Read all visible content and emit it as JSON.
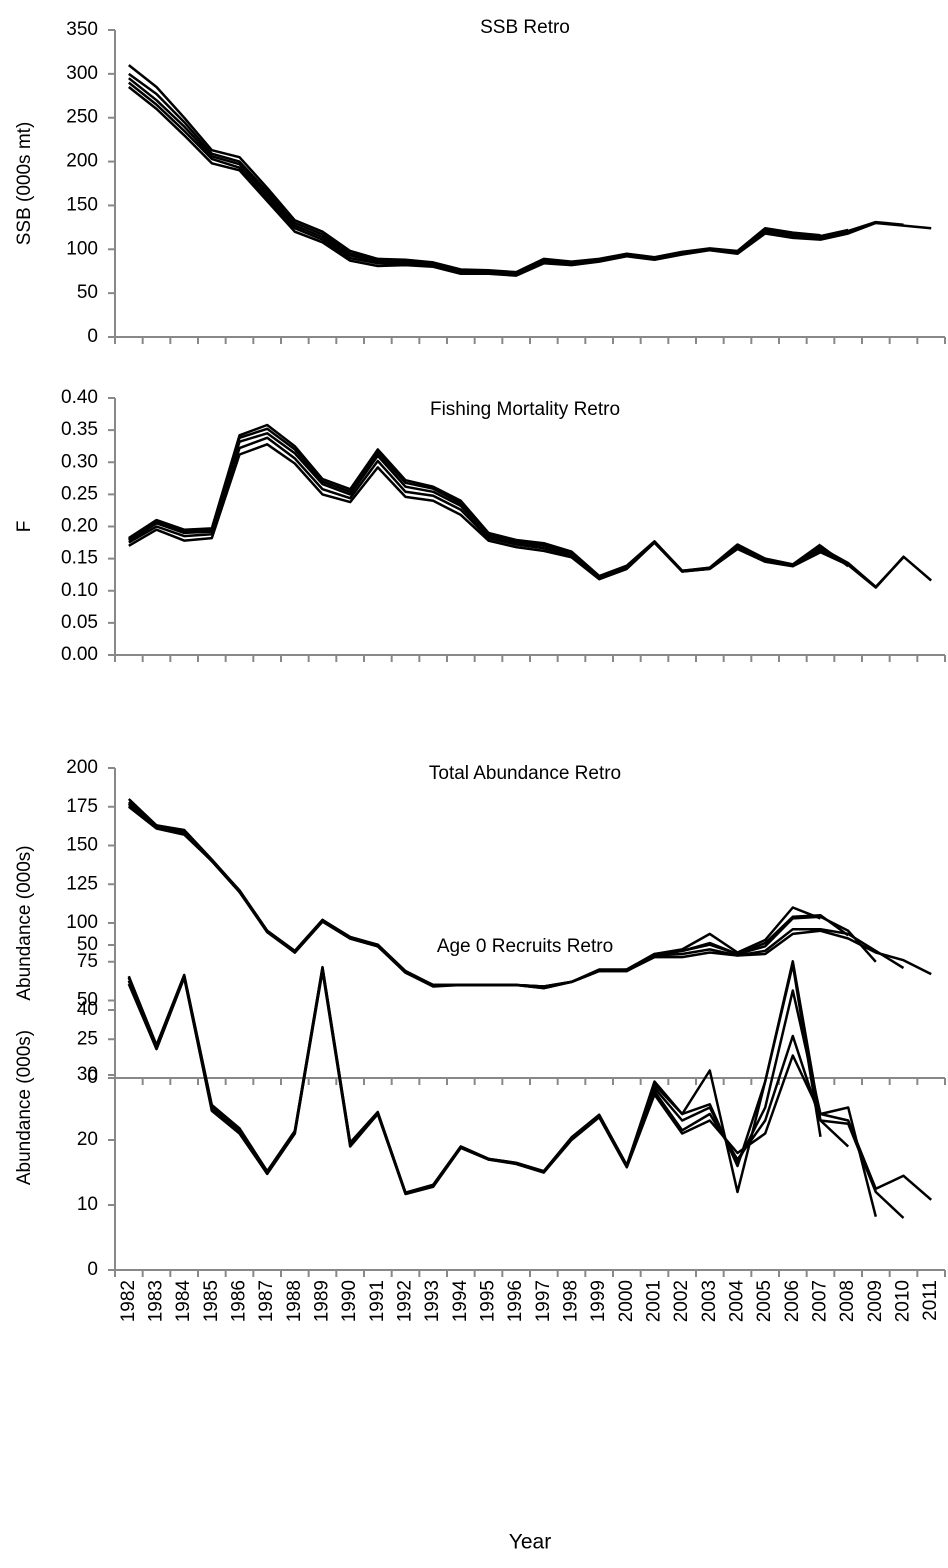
{
  "chart_data": [
    {
      "type": "line",
      "title": "SSB Retro",
      "ylabel": "SSB (000s mt)",
      "ylim": [
        0,
        350
      ],
      "yticks": [
        0,
        50,
        100,
        150,
        200,
        250,
        300,
        350
      ],
      "series": [
        {
          "color": "#000000",
          "values": [
            285,
            260,
            230,
            198,
            190,
            155,
            120,
            108,
            87,
            81,
            82,
            80,
            72,
            72,
            70,
            84,
            82,
            86,
            92,
            88,
            94,
            99,
            95,
            118,
            113,
            111,
            118,
            130,
            127,
            124
          ]
        },
        {
          "color": "#000000",
          "values": [
            290,
            265,
            235,
            203,
            193,
            158,
            124,
            111,
            90,
            84,
            84,
            82,
            74,
            73,
            71,
            86,
            83,
            87,
            93,
            89,
            95,
            100,
            96,
            120,
            115,
            113,
            120,
            131,
            128,
            null
          ]
        },
        {
          "color": "#000000",
          "values": [
            295,
            270,
            240,
            206,
            197,
            162,
            127,
            114,
            93,
            86,
            85,
            83,
            75,
            74,
            72,
            87,
            84,
            88,
            94,
            90,
            96,
            100,
            97,
            122,
            117,
            114,
            121,
            131,
            null,
            null
          ]
        },
        {
          "color": "#000000",
          "values": [
            300,
            277,
            245,
            209,
            200,
            166,
            130,
            117,
            95,
            88,
            86,
            84,
            76,
            75,
            73,
            88,
            85,
            88,
            94,
            90,
            96,
            100,
            97,
            123,
            118,
            115,
            122,
            null,
            null,
            null
          ]
        },
        {
          "color": "#000000",
          "values": [
            310,
            285,
            250,
            213,
            205,
            170,
            133,
            120,
            98,
            89,
            88,
            85,
            77,
            76,
            74,
            89,
            86,
            89,
            95,
            91,
            97,
            101,
            98,
            124,
            119,
            116,
            null,
            null,
            null,
            null
          ]
        }
      ]
    },
    {
      "type": "line",
      "title": "Fishing Mortality Retro",
      "ylabel": "F",
      "ylim": [
        0,
        0.4
      ],
      "yticks": [
        {
          "value": 0,
          "label": "0.00"
        },
        {
          "value": 0.05,
          "label": "0.05"
        },
        {
          "value": 0.1,
          "label": "0.10"
        },
        {
          "value": 0.15,
          "label": "0.15"
        },
        {
          "value": 0.2,
          "label": "0.20"
        },
        {
          "value": 0.25,
          "label": "0.25"
        },
        {
          "value": 0.3,
          "label": "0.30"
        },
        {
          "value": 0.35,
          "label": "0.35"
        },
        {
          "value": 0.4,
          "label": "0.40"
        }
      ],
      "series": [
        {
          "color": "#000000",
          "values": [
            0.17,
            0.195,
            0.178,
            0.182,
            0.312,
            0.328,
            0.298,
            0.25,
            0.238,
            0.292,
            0.246,
            0.24,
            0.218,
            0.178,
            0.168,
            0.162,
            0.152,
            0.118,
            0.134,
            0.175,
            0.13,
            0.134,
            0.165,
            0.145,
            0.138,
            0.16,
            0.14,
            0.105,
            0.153,
            0.116
          ]
        },
        {
          "color": "#000000",
          "values": [
            0.175,
            0.2,
            0.185,
            0.188,
            0.322,
            0.338,
            0.306,
            0.258,
            0.244,
            0.302,
            0.254,
            0.248,
            0.226,
            0.182,
            0.172,
            0.166,
            0.155,
            0.12,
            0.136,
            0.175,
            0.13,
            0.134,
            0.166,
            0.147,
            0.139,
            0.163,
            0.142,
            0.106,
            0.152,
            null
          ]
        },
        {
          "color": "#000000",
          "values": [
            0.178,
            0.205,
            0.19,
            0.192,
            0.332,
            0.345,
            0.314,
            0.266,
            0.25,
            0.31,
            0.262,
            0.254,
            0.232,
            0.185,
            0.175,
            0.17,
            0.158,
            0.121,
            0.137,
            0.176,
            0.13,
            0.135,
            0.168,
            0.148,
            0.14,
            0.167,
            0.143,
            0.106,
            null,
            null
          ]
        },
        {
          "color": "#000000",
          "values": [
            0.18,
            0.208,
            0.193,
            0.195,
            0.338,
            0.352,
            0.32,
            0.27,
            0.254,
            0.315,
            0.268,
            0.259,
            0.236,
            0.187,
            0.177,
            0.172,
            0.159,
            0.122,
            0.138,
            0.176,
            0.131,
            0.135,
            0.17,
            0.149,
            0.14,
            0.17,
            0.138,
            null,
            null,
            null
          ]
        },
        {
          "color": "#000000",
          "values": [
            0.182,
            0.21,
            0.195,
            0.197,
            0.342,
            0.358,
            0.325,
            0.274,
            0.258,
            0.32,
            0.272,
            0.262,
            0.24,
            0.19,
            0.179,
            0.174,
            0.161,
            0.123,
            0.139,
            0.177,
            0.131,
            0.136,
            0.172,
            0.15,
            0.141,
            0.172,
            null,
            null,
            null,
            null
          ]
        }
      ]
    },
    {
      "type": "line",
      "title": "Total Abundance Retro",
      "ylabel": "Abundance (000s)",
      "ylim": [
        0,
        200
      ],
      "yticks": [
        0,
        25,
        50,
        75,
        100,
        125,
        150,
        175,
        200
      ],
      "series": [
        {
          "color": "#000000",
          "values": [
            175,
            161,
            157,
            140,
            120,
            94,
            81,
            101,
            90,
            85,
            68,
            59,
            60,
            60,
            60,
            58,
            62,
            69,
            69,
            78,
            78,
            81,
            79,
            80,
            93,
            95,
            90,
            81,
            76,
            67
          ]
        },
        {
          "color": "#000000",
          "values": [
            176,
            162,
            158,
            140,
            120,
            95,
            81,
            101,
            90,
            85,
            68,
            60,
            60,
            60,
            60,
            58,
            62,
            69,
            69,
            79,
            80,
            83,
            79,
            82,
            96,
            96,
            93,
            82,
            71,
            null
          ]
        },
        {
          "color": "#000000",
          "values": [
            177,
            162,
            158,
            140,
            121,
            95,
            81,
            102,
            90,
            85,
            68,
            60,
            60,
            60,
            60,
            59,
            62,
            69,
            69,
            79,
            82,
            86,
            80,
            85,
            103,
            104,
            95,
            75,
            null,
            null
          ]
        },
        {
          "color": "#000000",
          "values": [
            178,
            163,
            159,
            140,
            121,
            95,
            82,
            102,
            90,
            86,
            68,
            60,
            60,
            60,
            60,
            59,
            62,
            69,
            70,
            80,
            82,
            87,
            80,
            87,
            104,
            105,
            92,
            null,
            null,
            null
          ]
        },
        {
          "color": "#000000",
          "values": [
            180,
            163,
            160,
            141,
            121,
            95,
            82,
            102,
            91,
            86,
            69,
            60,
            60,
            60,
            60,
            59,
            62,
            70,
            70,
            80,
            83,
            93,
            81,
            89,
            110,
            103,
            null,
            null,
            null,
            null
          ]
        }
      ]
    },
    {
      "type": "line",
      "title": "Age 0 Recruits Retro",
      "ylabel": "Abundance (000s)",
      "xlabel": "Year",
      "ylim": [
        0,
        50
      ],
      "yticks": [
        0,
        10,
        20,
        30,
        40,
        50
      ],
      "categories": [
        "1982",
        "1983",
        "1984",
        "1985",
        "1986",
        "1987",
        "1988",
        "1989",
        "1990",
        "1991",
        "1992",
        "1993",
        "1994",
        "1995",
        "1996",
        "1997",
        "1998",
        "1999",
        "2000",
        "2001",
        "2002",
        "2003",
        "2004",
        "2005",
        "2006",
        "2007",
        "2008",
        "2009",
        "2010",
        "2011"
      ],
      "series": [
        {
          "color": "#000000",
          "values": [
            44,
            34,
            45,
            24.5,
            21,
            14.8,
            21,
            46,
            19,
            24,
            11.7,
            12.8,
            18.8,
            17,
            16.3,
            15,
            20,
            23.5,
            15.8,
            27,
            21,
            23,
            18,
            21,
            33,
            24,
            23,
            12.5,
            14.5,
            10.8
          ]
        },
        {
          "color": "#000000",
          "values": [
            44.5,
            34,
            45,
            24.7,
            21.2,
            14.8,
            21,
            46.2,
            19.2,
            24,
            11.8,
            12.9,
            18.8,
            17,
            16.4,
            15,
            20.2,
            23.6,
            15.9,
            27.5,
            21.5,
            24,
            17,
            23,
            36,
            23,
            22.5,
            12,
            8,
            null
          ]
        },
        {
          "color": "#000000",
          "values": [
            45,
            34.2,
            45.2,
            25,
            21.5,
            15,
            21.2,
            46.4,
            19.4,
            24.1,
            11.8,
            13,
            18.9,
            17,
            16.4,
            15.1,
            20.2,
            23.7,
            16,
            28,
            23,
            25,
            16.5,
            25,
            43,
            24,
            25,
            8.2,
            null,
            null
          ]
        },
        {
          "color": "#000000",
          "values": [
            45,
            34.5,
            45.3,
            25.2,
            21.7,
            15.1,
            21.3,
            46.5,
            19.5,
            24.2,
            11.9,
            13.1,
            19,
            17.1,
            16.5,
            15.2,
            20.3,
            23.8,
            16.1,
            28.5,
            24,
            25.5,
            16,
            29,
            47.5,
            23,
            19,
            null,
            null,
            null
          ]
        },
        {
          "color": "#000000",
          "values": [
            45.2,
            34.6,
            45.4,
            25.4,
            21.8,
            15.2,
            21.4,
            46.6,
            19.6,
            24.3,
            11.9,
            13.1,
            19,
            17.1,
            16.5,
            15.2,
            20.4,
            23.9,
            16.1,
            29,
            24,
            30.7,
            12,
            29,
            47,
            20.5,
            null,
            null,
            null,
            null
          ]
        }
      ]
    }
  ]
}
